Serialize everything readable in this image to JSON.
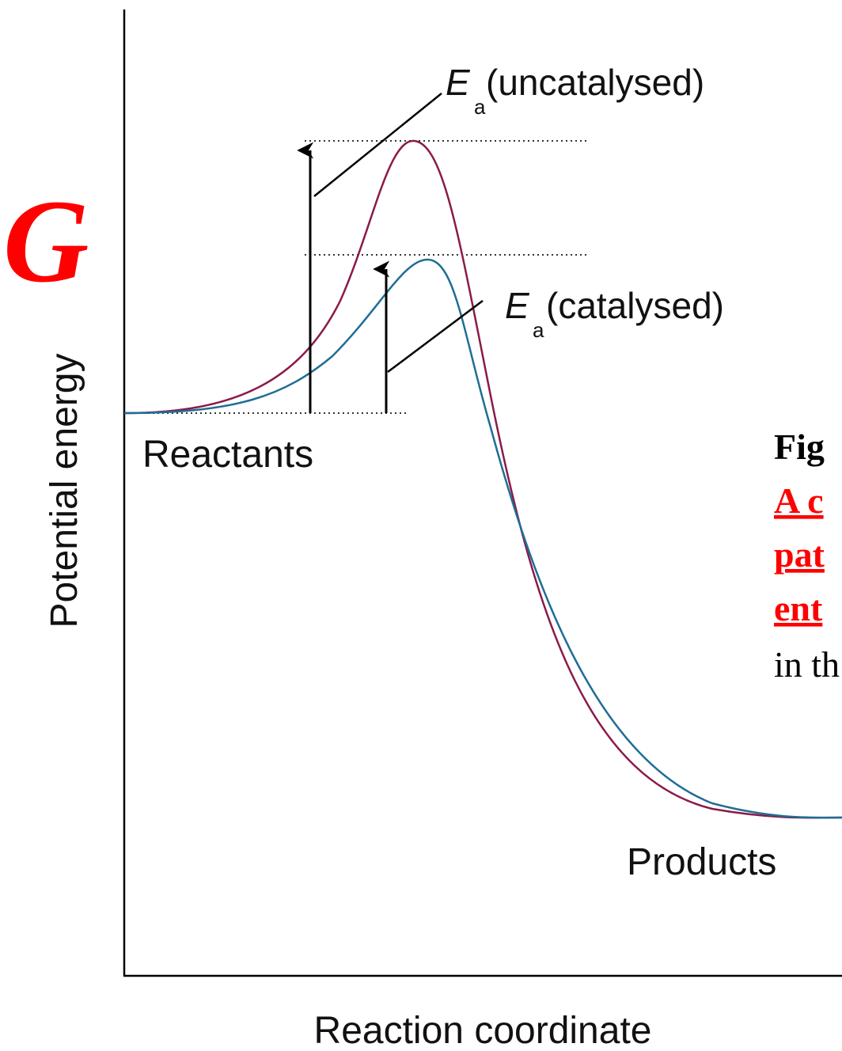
{
  "axes": {
    "y_label": "Potential energy",
    "x_label": "Reaction coordinate"
  },
  "symbol": "G",
  "levels": {
    "reactants": "Reactants",
    "products": "Products"
  },
  "annotations": {
    "uncatalysed": {
      "symbol": "E",
      "subscript": "a",
      "text": "(uncatalysed)"
    },
    "catalysed": {
      "symbol": "E",
      "subscript": "a",
      "text": "(catalysed)"
    }
  },
  "caption": {
    "lines": [
      "Fig",
      "A c",
      "pat",
      "ent",
      "in th"
    ]
  }
}
